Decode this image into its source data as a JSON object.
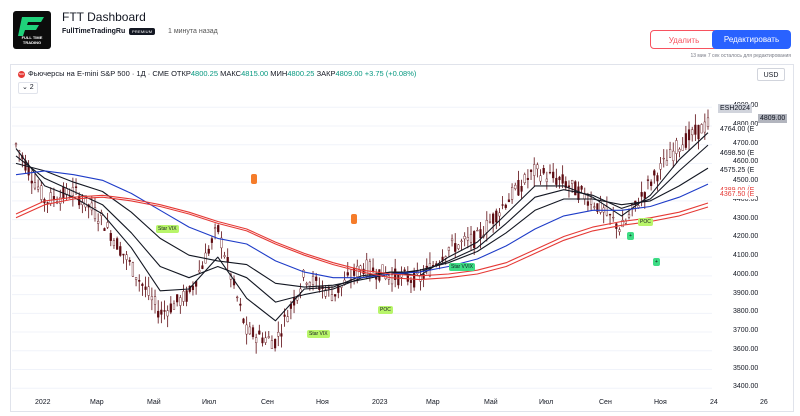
{
  "header": {
    "dashboard_title": "FTT Dashboard",
    "author": "FullTimeTradingRu",
    "badge": "PREMIUM",
    "published": "1 минута назад",
    "delete_label": "Удалить",
    "edit_label": "Редактировать",
    "edit_note": "13 мин 7 сек осталось для редактирования",
    "logo_text": [
      "FULL TIME",
      "TRADING"
    ]
  },
  "legend": {
    "symbol_text": "Фьючерсы на E-mini S&P 500 · 1Д · CME",
    "symbol_icon_text": "500",
    "open_key": "ОТКР",
    "open": "4800.25",
    "high_key": "МАКС",
    "high": "4815.00",
    "low_key": "МИН",
    "low": "4800.25",
    "close_key": "ЗАКР",
    "close": "4809.00",
    "change": "+3.75 (+0.08%)",
    "collapse_label": "⌄ 2"
  },
  "currency": "USD",
  "price_axis": [
    "4900.00",
    "4800.00",
    "4700.00",
    "4600.00",
    "4500.00",
    "4400.00",
    "4300.00",
    "4200.00",
    "4100.00",
    "4000.00",
    "3900.00",
    "3800.00",
    "3700.00",
    "3600.00",
    "3500.00",
    "3400.00"
  ],
  "time_axis": [
    "2022",
    "Мар",
    "Май",
    "Июл",
    "Сен",
    "Ноя",
    "2023",
    "Мар",
    "Май",
    "Июл",
    "Сен",
    "Ноя",
    "24",
    "26"
  ],
  "price_tags": [
    {
      "text": "ESH2024",
      "color": "#131722",
      "bg": "#d1d4dc"
    },
    {
      "text": "4809.00",
      "color": "#131722",
      "bg": "#b2b5be"
    },
    {
      "text": "4764.00 (E",
      "color": "#131722",
      "bg": "#fff"
    },
    {
      "text": "4698.50 (E",
      "color": "#131722",
      "bg": "#fff"
    },
    {
      "text": "4575.25 (E",
      "color": "#131722",
      "bg": "#fff"
    },
    {
      "text": "4490.00 (E",
      "color": "#1e3cc8",
      "bg": "#fff"
    },
    {
      "text": "4389.00 (E",
      "color": "#e53935",
      "bg": "#fff"
    },
    {
      "text": "4367.50 (E",
      "color": "#e53935",
      "bg": "#fff"
    }
  ],
  "markers": [
    {
      "text": "Star VIX",
      "bg": "#b8f56a"
    },
    {
      "text": "Star VIX",
      "bg": "#b8f56a"
    },
    {
      "text": "POC",
      "bg": "#b8f56a"
    },
    {
      "text": "Star VVIX",
      "bg": "#3ddc84"
    },
    {
      "text": "POC",
      "bg": "#b8f56a"
    },
    {
      "text": "+",
      "bg": "#3ddc84"
    },
    {
      "text": "+",
      "bg": "#3ddc84"
    }
  ],
  "colors": {
    "accent": "#2962ff",
    "danger": "#f7525f",
    "ema_red": "#e53935",
    "ema_blue": "#1e3cc8",
    "ema_black": "#131722",
    "candle": "#5d0a10"
  },
  "chart_data": {
    "type": "line",
    "x": [
      "2022-01",
      "2022-02",
      "2022-03",
      "2022-04",
      "2022-05",
      "2022-06",
      "2022-07",
      "2022-08",
      "2022-09",
      "2022-10",
      "2022-11",
      "2022-12",
      "2023-01",
      "2023-02",
      "2023-03",
      "2023-04",
      "2023-05",
      "2023-06",
      "2023-07",
      "2023-08",
      "2023-09",
      "2023-10",
      "2023-11",
      "2023-12",
      "2024-01"
    ],
    "ylim": [
      3380,
      4960
    ],
    "series": [
      {
        "values": [
          4700,
          4400,
          4450,
          4300,
          4050,
          3800,
          3900,
          4250,
          3700,
          3650,
          4000,
          3900,
          4050,
          4000,
          3980,
          4150,
          4200,
          4400,
          4560,
          4500,
          4400,
          4250,
          4500,
          4700,
          4809
        ]
      },
      {
        "values": [
          4680,
          4480,
          4420,
          4330,
          4150,
          3920,
          3930,
          4100,
          3880,
          3760,
          3930,
          3940,
          4000,
          4020,
          4000,
          4100,
          4180,
          4330,
          4480,
          4480,
          4420,
          4320,
          4430,
          4620,
          4764
        ]
      },
      {
        "values": [
          4640,
          4520,
          4450,
          4380,
          4230,
          4050,
          3990,
          4050,
          3990,
          3860,
          3900,
          3930,
          3990,
          4020,
          4020,
          4080,
          4150,
          4280,
          4420,
          4460,
          4430,
          4360,
          4410,
          4560,
          4698
        ]
      },
      {
        "values": [
          4600,
          4560,
          4500,
          4450,
          4340,
          4200,
          4110,
          4080,
          4060,
          3960,
          3940,
          3950,
          3980,
          4010,
          4030,
          4070,
          4130,
          4230,
          4350,
          4410,
          4410,
          4380,
          4400,
          4480,
          4575
        ]
      },
      {
        "values": [
          4540,
          4560,
          4540,
          4510,
          4440,
          4350,
          4260,
          4200,
          4170,
          4080,
          4020,
          3990,
          3990,
          4010,
          4020,
          4050,
          4090,
          4160,
          4250,
          4320,
          4350,
          4350,
          4370,
          4420,
          4490
        ]
      },
      {
        "values": [
          4330,
          4400,
          4420,
          4430,
          4410,
          4380,
          4340,
          4290,
          4250,
          4180,
          4120,
          4070,
          4030,
          4010,
          4000,
          4010,
          4030,
          4070,
          4140,
          4210,
          4260,
          4290,
          4310,
          4340,
          4389
        ]
      },
      {
        "values": [
          4310,
          4380,
          4410,
          4420,
          4400,
          4370,
          4330,
          4280,
          4240,
          4170,
          4110,
          4060,
          4020,
          3990,
          3980,
          3990,
          4010,
          4050,
          4120,
          4190,
          4240,
          4270,
          4290,
          4320,
          4367.5
        ]
      }
    ]
  }
}
